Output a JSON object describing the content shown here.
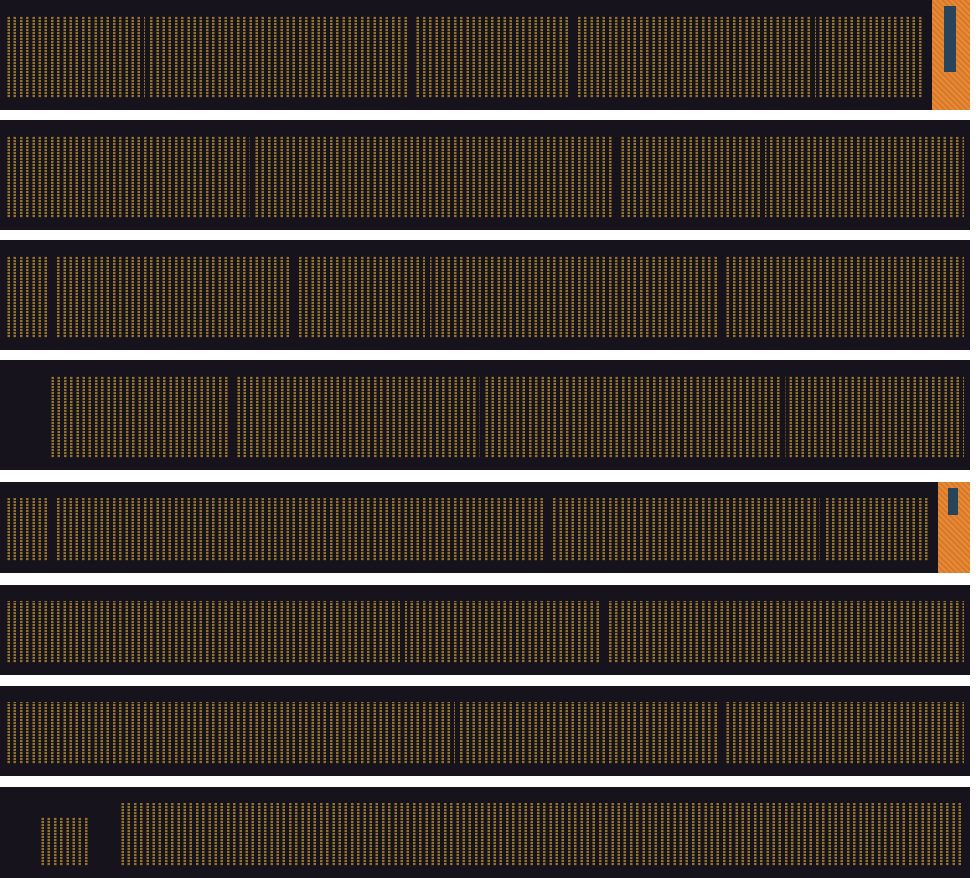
{
  "scroll": {
    "segment_count": 8,
    "colors": {
      "paper": "#16131d",
      "ink": "#a8842f",
      "cover": "#e0822f",
      "title_label": "#27445a",
      "background": "#ffffff"
    },
    "segments_with_cover": [
      1,
      5
    ]
  }
}
